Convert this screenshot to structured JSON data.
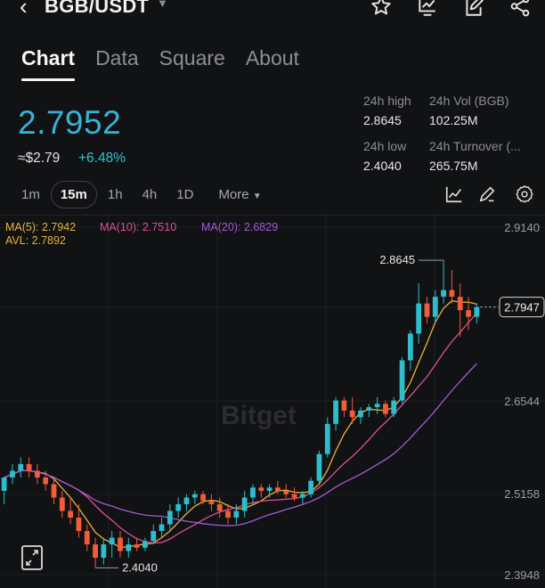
{
  "header": {
    "pair": "BGB/USDT",
    "icons": [
      "back-icon",
      "caret-down-icon",
      "star-icon",
      "chart-report-icon",
      "edit-note-icon",
      "share-icon"
    ]
  },
  "tabs": [
    {
      "label": "Chart",
      "active": true
    },
    {
      "label": "Data",
      "active": false
    },
    {
      "label": "Square",
      "active": false
    },
    {
      "label": "About",
      "active": false
    }
  ],
  "price": {
    "last": "2.7952",
    "approx": "≈$2.79",
    "change": "+6.48%"
  },
  "stats": {
    "high_label": "24h high",
    "high_value": "2.8645",
    "vol_label": "24h Vol (BGB)",
    "vol_value": "102.25M",
    "low_label": "24h low",
    "low_value": "2.4040",
    "turnover_label": "24h Turnover (...",
    "turnover_value": "265.75M"
  },
  "intervals": [
    "1m",
    "15m",
    "1h",
    "4h",
    "1D"
  ],
  "selected_interval": "15m",
  "more_label": "More",
  "indicators": {
    "ma5": "MA(5): 2.7942",
    "ma10": "MA(10): 2.7510",
    "ma20": "MA(20): 2.6829",
    "avl": "AVL: 2.7892"
  },
  "colors": {
    "up": "#2ebdcc",
    "down": "#f25c38",
    "ma5": "#e8b33a",
    "ma10": "#df4f9a",
    "ma20": "#a45ad8",
    "price": "#36b3d6"
  },
  "chart_data": {
    "type": "candlestick",
    "y_ticks": [
      "2.9140",
      "2.6544",
      "2.5158",
      "2.3948"
    ],
    "ylim": [
      2.3948,
      2.914
    ],
    "current_price_label": "2.7947",
    "high_annotation": "2.8645",
    "low_annotation": "2.4040",
    "watermark": "Bitget",
    "candles": [
      [
        2.52,
        2.54,
        2.5,
        2.54
      ],
      [
        2.54,
        2.56,
        2.53,
        2.55
      ],
      [
        2.55,
        2.57,
        2.54,
        2.56
      ],
      [
        2.56,
        2.57,
        2.54,
        2.55
      ],
      [
        2.55,
        2.56,
        2.53,
        2.54
      ],
      [
        2.54,
        2.55,
        2.52,
        2.53
      ],
      [
        2.53,
        2.54,
        2.5,
        2.51
      ],
      [
        2.51,
        2.52,
        2.48,
        2.49
      ],
      [
        2.49,
        2.51,
        2.47,
        2.48
      ],
      [
        2.48,
        2.5,
        2.45,
        2.46
      ],
      [
        2.46,
        2.47,
        2.43,
        2.44
      ],
      [
        2.44,
        2.45,
        2.405,
        2.42
      ],
      [
        2.42,
        2.45,
        2.41,
        2.44
      ],
      [
        2.44,
        2.46,
        2.42,
        2.45
      ],
      [
        2.45,
        2.46,
        2.42,
        2.43
      ],
      [
        2.43,
        2.45,
        2.42,
        2.44
      ],
      [
        2.44,
        2.45,
        2.43,
        2.435
      ],
      [
        2.435,
        2.45,
        2.43,
        2.445
      ],
      [
        2.445,
        2.47,
        2.44,
        2.46
      ],
      [
        2.46,
        2.48,
        2.45,
        2.47
      ],
      [
        2.47,
        2.5,
        2.46,
        2.49
      ],
      [
        2.49,
        2.51,
        2.48,
        2.5
      ],
      [
        2.5,
        2.515,
        2.49,
        2.51
      ],
      [
        2.51,
        2.52,
        2.5,
        2.515
      ],
      [
        2.515,
        2.52,
        2.5,
        2.505
      ],
      [
        2.505,
        2.515,
        2.49,
        2.5
      ],
      [
        2.5,
        2.51,
        2.48,
        2.49
      ],
      [
        2.49,
        2.5,
        2.47,
        2.48
      ],
      [
        2.48,
        2.5,
        2.47,
        2.49
      ],
      [
        2.49,
        2.52,
        2.48,
        2.51
      ],
      [
        2.51,
        2.53,
        2.5,
        2.525
      ],
      [
        2.525,
        2.53,
        2.51,
        2.52
      ],
      [
        2.52,
        2.53,
        2.51,
        2.525
      ],
      [
        2.525,
        2.535,
        2.515,
        2.52
      ],
      [
        2.52,
        2.53,
        2.51,
        2.515
      ],
      [
        2.515,
        2.525,
        2.505,
        2.51
      ],
      [
        2.51,
        2.52,
        2.5,
        2.515
      ],
      [
        2.515,
        2.54,
        2.51,
        2.535
      ],
      [
        2.535,
        2.58,
        2.53,
        2.575
      ],
      [
        2.575,
        2.63,
        2.57,
        2.62
      ],
      [
        2.62,
        2.66,
        2.61,
        2.655
      ],
      [
        2.655,
        2.66,
        2.63,
        2.64
      ],
      [
        2.64,
        2.66,
        2.62,
        2.63
      ],
      [
        2.63,
        2.645,
        2.62,
        2.64
      ],
      [
        2.64,
        2.65,
        2.63,
        2.645
      ],
      [
        2.645,
        2.66,
        2.635,
        2.65
      ],
      [
        2.65,
        2.655,
        2.63,
        2.635
      ],
      [
        2.635,
        2.66,
        2.63,
        2.655
      ],
      [
        2.655,
        2.72,
        2.65,
        2.715
      ],
      [
        2.715,
        2.76,
        2.7,
        2.755
      ],
      [
        2.755,
        2.83,
        2.74,
        2.8
      ],
      [
        2.8,
        2.81,
        2.77,
        2.78
      ],
      [
        2.78,
        2.82,
        2.77,
        2.81
      ],
      [
        2.81,
        2.8645,
        2.8,
        2.82
      ],
      [
        2.82,
        2.85,
        2.8,
        2.81
      ],
      [
        2.81,
        2.83,
        2.75,
        2.79
      ],
      [
        2.79,
        2.81,
        2.76,
        2.78
      ],
      [
        2.78,
        2.8,
        2.77,
        2.7947
      ]
    ]
  }
}
